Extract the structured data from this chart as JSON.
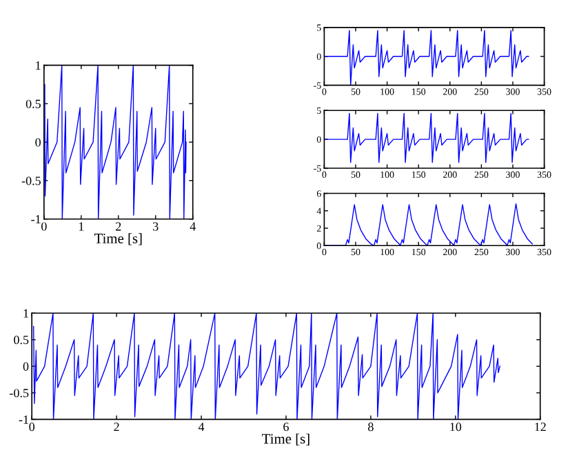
{
  "chart_data": [
    {
      "type": "line",
      "xlabel": "Time [s]",
      "xlim": [
        0,
        4
      ],
      "xticks": [
        0,
        1,
        2,
        3,
        4
      ],
      "ylim": [
        -1,
        1
      ],
      "yticks": [
        -1,
        -0.5,
        0,
        0.5,
        1
      ],
      "series": [
        {
          "color": "#0000ff",
          "x": [
            0.02,
            0.03,
            0.1,
            0.11,
            0.35,
            0.48,
            0.49,
            0.58,
            0.59,
            0.83,
            0.97,
            0.98,
            1.07,
            1.08,
            1.32,
            1.45,
            1.46,
            1.55,
            1.56,
            1.8,
            1.93,
            1.94,
            2.03,
            2.04,
            2.28,
            2.4,
            2.41,
            2.5,
            2.51,
            2.75,
            2.9,
            2.91,
            3.0,
            3.01,
            3.25,
            3.37,
            3.38,
            3.47,
            3.48,
            3.72,
            3.75,
            3.76,
            3.8,
            3.81,
            3.82
          ],
          "values": [
            0.75,
            -0.7,
            0.3,
            -0.28,
            0,
            1,
            -1,
            0.4,
            -0.4,
            0,
            0.45,
            -0.55,
            0.18,
            -0.22,
            0,
            1,
            -1,
            0.4,
            -0.4,
            0,
            0.45,
            -0.55,
            0.18,
            -0.22,
            0,
            1,
            -0.95,
            0.4,
            -0.38,
            0,
            0.45,
            -0.55,
            0.18,
            -0.22,
            0,
            1,
            -1,
            0.4,
            -0.4,
            0,
            0.4,
            -1,
            0.16,
            -0.4,
            0
          ]
        }
      ]
    },
    {
      "type": "line",
      "xlim": [
        0,
        350
      ],
      "xticks": [
        0,
        50,
        100,
        150,
        200,
        250,
        300,
        350
      ],
      "ylim": [
        -5,
        5
      ],
      "yticks": [
        -5,
        0,
        5
      ],
      "series": [
        {
          "color": "#0000ff",
          "x": [
            0,
            37,
            40,
            42,
            46,
            48,
            55,
            57,
            65,
            82,
            85,
            87,
            91,
            93,
            100,
            102,
            110,
            124,
            127,
            129,
            133,
            135,
            142,
            144,
            152,
            167,
            170,
            172,
            176,
            178,
            185,
            187,
            195,
            209,
            212,
            214,
            218,
            220,
            227,
            229,
            237,
            252,
            255,
            257,
            261,
            263,
            270,
            272,
            280,
            294,
            297,
            299,
            303,
            305,
            312,
            314,
            322,
            325
          ],
          "values": [
            0,
            0,
            4.5,
            -5,
            2,
            -2,
            1,
            -1,
            0,
            0,
            4.5,
            -3.5,
            2,
            -2,
            1,
            -1,
            0,
            0,
            4.5,
            -3.5,
            2,
            -2,
            1,
            -1,
            0,
            0,
            4.5,
            -3.5,
            2,
            -2,
            1,
            -1,
            0,
            0,
            4.5,
            -3.5,
            2,
            -2,
            1,
            -1,
            0,
            0,
            4.5,
            -3.5,
            2,
            -2,
            1,
            -1,
            0,
            0,
            4.5,
            -3.5,
            2,
            -2,
            1,
            -1,
            0,
            0
          ]
        }
      ]
    },
    {
      "type": "line",
      "xlim": [
        0,
        350
      ],
      "xticks": [
        0,
        50,
        100,
        150,
        200,
        250,
        300,
        350
      ],
      "ylim": [
        -5,
        5
      ],
      "yticks": [
        -5,
        0,
        5
      ],
      "series": [
        {
          "color": "#0000ff",
          "x": [
            0,
            37,
            40,
            42,
            46,
            48,
            55,
            57,
            65,
            82,
            85,
            87,
            91,
            93,
            100,
            102,
            110,
            124,
            127,
            129,
            133,
            135,
            142,
            144,
            152,
            167,
            170,
            172,
            176,
            178,
            185,
            187,
            195,
            209,
            212,
            214,
            218,
            220,
            227,
            229,
            237,
            252,
            255,
            257,
            261,
            263,
            270,
            272,
            280,
            294,
            297,
            299,
            303,
            305,
            312,
            314,
            322,
            325
          ],
          "values": [
            0,
            0,
            4.5,
            -4,
            2,
            -2,
            1,
            -1,
            0,
            0,
            4.5,
            -4,
            2,
            -2,
            1,
            -1,
            0,
            0,
            4.5,
            -4,
            2,
            -2,
            1,
            -1,
            0,
            0,
            4.5,
            -4,
            2,
            -2,
            1,
            -1,
            0,
            0,
            4.5,
            -4,
            2,
            -2,
            1,
            -1,
            0,
            0,
            4.5,
            -4,
            2,
            -2,
            1,
            -1,
            0,
            0,
            4.5,
            -4,
            2,
            -2,
            1,
            -1,
            0,
            0
          ]
        }
      ]
    },
    {
      "type": "line",
      "xlim": [
        0,
        350
      ],
      "xticks": [
        0,
        50,
        100,
        150,
        200,
        250,
        300,
        350
      ],
      "ylim": [
        0,
        6
      ],
      "yticks": [
        0,
        2,
        4,
        6
      ],
      "series": [
        {
          "color": "#0000ff",
          "x": [
            0,
            34,
            37,
            39,
            48,
            52,
            58,
            66,
            74,
            79,
            82,
            84,
            93,
            97,
            103,
            111,
            119,
            121,
            124,
            126,
            135,
            139,
            145,
            153,
            161,
            164,
            167,
            169,
            178,
            182,
            188,
            196,
            204,
            206,
            209,
            211,
            220,
            224,
            230,
            238,
            246,
            249,
            252,
            254,
            263,
            267,
            273,
            281,
            289,
            291,
            294,
            296,
            305,
            309,
            315,
            323,
            331
          ],
          "values": [
            0,
            0,
            0.7,
            0.3,
            4.7,
            3,
            1.8,
            0.8,
            0.2,
            0,
            0.7,
            0.3,
            4.7,
            3,
            1.8,
            0.8,
            0.2,
            0,
            0.7,
            0.3,
            4.7,
            3,
            1.8,
            0.8,
            0.2,
            0,
            0.7,
            0.3,
            4.7,
            3,
            1.8,
            0.8,
            0.2,
            0,
            0.7,
            0.3,
            4.7,
            3,
            1.8,
            0.8,
            0.2,
            0,
            0.7,
            0.3,
            4.7,
            3,
            1.8,
            0.8,
            0.2,
            0,
            0.7,
            0.3,
            4.8,
            3,
            1.8,
            0.8,
            0.2
          ]
        }
      ]
    },
    {
      "type": "line",
      "xlabel": "Time [s]",
      "xlim": [
        0,
        12
      ],
      "xticks": [
        0,
        2,
        4,
        6,
        8,
        10,
        12
      ],
      "ylim": [
        -1,
        1
      ],
      "yticks": [
        -1,
        -0.5,
        0,
        0.5,
        1
      ],
      "series": [
        {
          "color": "#0000ff",
          "x": [
            0.04,
            0.06,
            0.1,
            0.11,
            0.3,
            0.5,
            0.51,
            0.6,
            0.61,
            0.8,
            1,
            1.01,
            1.1,
            1.11,
            1.3,
            1.45,
            1.46,
            1.55,
            1.56,
            1.75,
            1.95,
            1.96,
            2.05,
            2.06,
            2.25,
            2.42,
            2.43,
            2.52,
            2.53,
            2.72,
            2.9,
            2.91,
            3.0,
            3.01,
            3.2,
            3.37,
            3.38,
            3.47,
            3.48,
            3.67,
            3.75,
            3.76,
            3.85,
            3.86,
            4.05,
            4.32,
            4.33,
            4.42,
            4.43,
            4.62,
            4.8,
            4.81,
            4.9,
            4.91,
            5.1,
            5.3,
            5.31,
            5.4,
            5.41,
            5.6,
            5.75,
            5.76,
            5.85,
            5.86,
            6.05,
            6.25,
            6.26,
            6.35,
            6.36,
            6.55,
            6.6,
            6.61,
            6.7,
            6.71,
            6.9,
            7.2,
            7.21,
            7.3,
            7.31,
            7.5,
            7.7,
            7.71,
            7.8,
            7.81,
            8.0,
            8.15,
            8.16,
            8.25,
            8.26,
            8.45,
            8.6,
            8.61,
            8.7,
            8.71,
            8.9,
            9.1,
            9.11,
            9.2,
            9.21,
            9.4,
            9.47,
            9.48,
            9.57,
            9.58,
            9.9,
            10.05,
            10.06,
            10.15,
            10.16,
            10.35,
            10.5,
            10.51,
            10.6,
            10.61,
            10.8,
            10.9,
            10.91,
            11.0,
            11.01,
            11.05
          ],
          "values": [
            0.75,
            -0.7,
            0.3,
            -0.28,
            0,
            1,
            -1,
            0.4,
            -0.4,
            0,
            0.5,
            -0.55,
            0.2,
            -0.22,
            0,
            1,
            -1,
            0.4,
            -0.4,
            0,
            0.5,
            -0.55,
            0.2,
            -0.22,
            0,
            1,
            -0.95,
            0.4,
            -0.38,
            0,
            0.5,
            -0.55,
            0.2,
            -0.22,
            0,
            1,
            -1,
            0.4,
            -0.4,
            0,
            0.5,
            -1,
            0.2,
            -0.4,
            0,
            1,
            -1,
            0.4,
            -0.4,
            0,
            0.5,
            -0.55,
            0.2,
            -0.22,
            0,
            1,
            -0.9,
            0.4,
            -0.36,
            0,
            0.5,
            -0.55,
            0.2,
            -0.22,
            0,
            1,
            -1,
            0.4,
            -0.4,
            0,
            1,
            -1,
            0.4,
            -0.4,
            0,
            1,
            -1,
            0.4,
            -0.4,
            0,
            0.55,
            -0.55,
            0.22,
            -0.22,
            0,
            1,
            -0.95,
            0.4,
            -0.38,
            0,
            0.5,
            -0.55,
            0.2,
            -0.22,
            0,
            1,
            -1,
            0.4,
            -0.4,
            0,
            1,
            -1,
            0.5,
            -0.5,
            0,
            0.6,
            -1,
            0.3,
            -0.4,
            0,
            0.5,
            -0.55,
            0.2,
            -0.22,
            0,
            0.4,
            -0.3,
            0.15,
            -0.12,
            0
          ]
        }
      ]
    }
  ]
}
